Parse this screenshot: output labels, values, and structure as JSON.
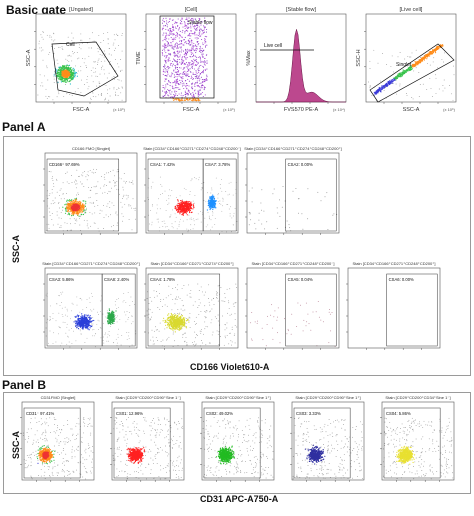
{
  "sections": {
    "basic_gate": "Basic gate",
    "panel_a": "Panel A",
    "panel_b": "Panel B"
  },
  "axis_titles": {
    "panel_a_y": "SSC-A",
    "panel_a_x": "CD166 Violet610-A",
    "panel_b_y": "SSC-A",
    "panel_b_x": "CD31 APC-A750-A"
  },
  "chart_data": [
    {
      "type": "scatter",
      "id": "bg-1",
      "title": "[Ungated]",
      "xlabel": "FSC-A",
      "ylabel": "SSC-A",
      "unit": "(x 10⁶)",
      "gates": [
        {
          "label": "Cell"
        }
      ],
      "pattern": "cloud",
      "colors": [
        "#3b3bd9",
        "#22b8c8",
        "#37c24a",
        "#ff8c1a"
      ]
    },
    {
      "type": "scatter",
      "id": "bg-2",
      "title": "[Cell]",
      "xlabel": "FSC-A",
      "ylabel": "TIME",
      "unit": "(x 10⁶)",
      "gates": [
        {
          "label": "Stable flow"
        }
      ],
      "pattern": "band",
      "colors": [
        "#8b3fc4",
        "#b04ad6"
      ]
    },
    {
      "type": "area",
      "id": "bg-3",
      "title": "[Stable flow]",
      "xlabel": "FVS570 PE-A",
      "ylabel": "%Max",
      "unit": "(x 10⁴)",
      "gates": [
        {
          "label": "Live cell"
        }
      ],
      "pattern": "histogram",
      "colors": [
        "#b0287a"
      ]
    },
    {
      "type": "scatter",
      "id": "bg-4",
      "title": "[Live cell]",
      "xlabel": "SSC-A",
      "ylabel": "SSC-H",
      "unit": "(x 10⁶)",
      "gates": [
        {
          "label": "Singlet"
        }
      ],
      "pattern": "diagonal",
      "colors": [
        "#3b3bd9",
        "#37c24a",
        "#ff8c1a"
      ]
    },
    {
      "type": "scatter",
      "id": "a-1",
      "title": "CD166 FMO [Singlet]",
      "gates": [
        {
          "label": "CD166⁺ 97.69%"
        }
      ],
      "pattern": "cloud",
      "colors": [
        "#3b3bd9",
        "#37c24a",
        "#ff8c1a",
        "#e33"
      ]
    },
    {
      "type": "scatter",
      "id": "a-2",
      "title": "Stain [CD34⁺CD166⁺CD271⁺CD274⁺CD248⁺CD200⁻]",
      "gates": [
        {
          "label": "CSA1: 7.42%"
        },
        {
          "label": "CSA7: 3.78%"
        }
      ],
      "pattern": "cloud2",
      "colors": [
        "#ff2020",
        "#1e90ff"
      ]
    },
    {
      "type": "scatter",
      "id": "a-3",
      "title": "Stain [CD34⁺CD166⁺CD271⁺CD274⁺CD248⁺CD200⁺]",
      "gates": [
        {
          "label": "CSA2: 0.00%"
        }
      ],
      "pattern": "sparse",
      "colors": [
        "#999999"
      ]
    },
    {
      "type": "scatter",
      "id": "a-4",
      "title": "Stain [CD34⁺CD166⁺CD271⁺CD274⁺CD248⁺CD200⁺]",
      "gates": [
        {
          "label": "CSA3: 5.86%"
        },
        {
          "label": "CSA8: 2.40%"
        }
      ],
      "pattern": "cloud2",
      "colors": [
        "#2a3fd9",
        "#2ca84a"
      ]
    },
    {
      "type": "scatter",
      "id": "a-5",
      "title": "Stain [CD34⁺CD166⁺CD271⁺CD274⁺CD200⁺]",
      "gates": [
        {
          "label": "CSA4: 1.78%"
        }
      ],
      "pattern": "cloud",
      "colors": [
        "#d9d930"
      ]
    },
    {
      "type": "scatter",
      "id": "a-6",
      "title": "Stain [CD34⁺CD166⁺CD271⁺CD248⁺CD200⁻]",
      "gates": [
        {
          "label": "CSA5: 0.04%"
        }
      ],
      "pattern": "sparse",
      "colors": [
        "#c08fa0"
      ]
    },
    {
      "type": "scatter",
      "id": "a-7",
      "title": "Stain [CD34⁺CD166⁺CD271⁺CD248⁺CD200⁺]",
      "gates": [
        {
          "label": "CSA6: 0.00%"
        }
      ],
      "pattern": "empty",
      "colors": [
        "#999999"
      ]
    },
    {
      "type": "scatter",
      "id": "b-1",
      "title": "CD31FMO [Singlet]",
      "gates": [
        {
          "label": "CD31⁻ 97.41%"
        }
      ],
      "pattern": "cloud",
      "colors": [
        "#3b3bd9",
        "#37c24a",
        "#ff8c1a",
        "#e33"
      ]
    },
    {
      "type": "scatter",
      "id": "b-2",
      "title": "Stain [CD29⁺CD200⁺CD90⁺Sine 1⁻]",
      "gates": [
        {
          "label": "CS01: 12.96%"
        }
      ],
      "pattern": "cloud",
      "colors": [
        "#ff2020"
      ]
    },
    {
      "type": "scatter",
      "id": "b-3",
      "title": "Stain [CD29⁺CD200⁺CD90⁺Sine 1⁺]",
      "gates": [
        {
          "label": "CS02: 49.02%"
        }
      ],
      "pattern": "cloud",
      "colors": [
        "#22bb22"
      ]
    },
    {
      "type": "scatter",
      "id": "b-4",
      "title": "Stain [CD29⁺CD200⁺CD90⁺Sine 1⁺]",
      "gates": [
        {
          "label": "CS03: 3.33%"
        }
      ],
      "pattern": "cloud",
      "colors": [
        "#3030a0"
      ]
    },
    {
      "type": "scatter",
      "id": "b-5",
      "title": "Stain [CD29⁺CD200⁺CD34⁺Sine 1⁻]",
      "gates": [
        {
          "label": "CS04: 5.86%"
        }
      ],
      "pattern": "cloud",
      "colors": [
        "#e8e030"
      ]
    }
  ]
}
